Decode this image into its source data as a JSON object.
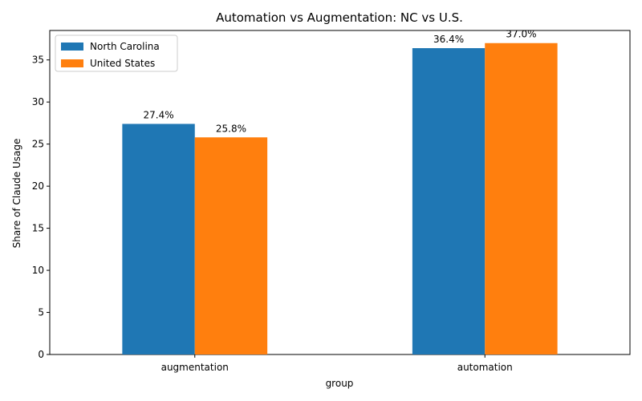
{
  "chart_data": {
    "type": "bar",
    "title": "Automation vs Augmentation: NC vs U.S.",
    "xlabel": "group",
    "ylabel": "Share of Claude Usage",
    "categories": [
      "augmentation",
      "automation"
    ],
    "series": [
      {
        "name": "North Carolina",
        "color": "#1f77b4",
        "values": [
          27.4,
          36.4
        ],
        "labels": [
          "27.4%",
          "36.4%"
        ]
      },
      {
        "name": "United States",
        "color": "#ff7f0e",
        "values": [
          25.8,
          37.0
        ],
        "labels": [
          "25.8%",
          "37.0%"
        ]
      }
    ],
    "ylim": [
      0,
      38.5
    ],
    "yticks": [
      0,
      5,
      10,
      15,
      20,
      25,
      30,
      35
    ],
    "grid": false,
    "legend": "top-left"
  }
}
